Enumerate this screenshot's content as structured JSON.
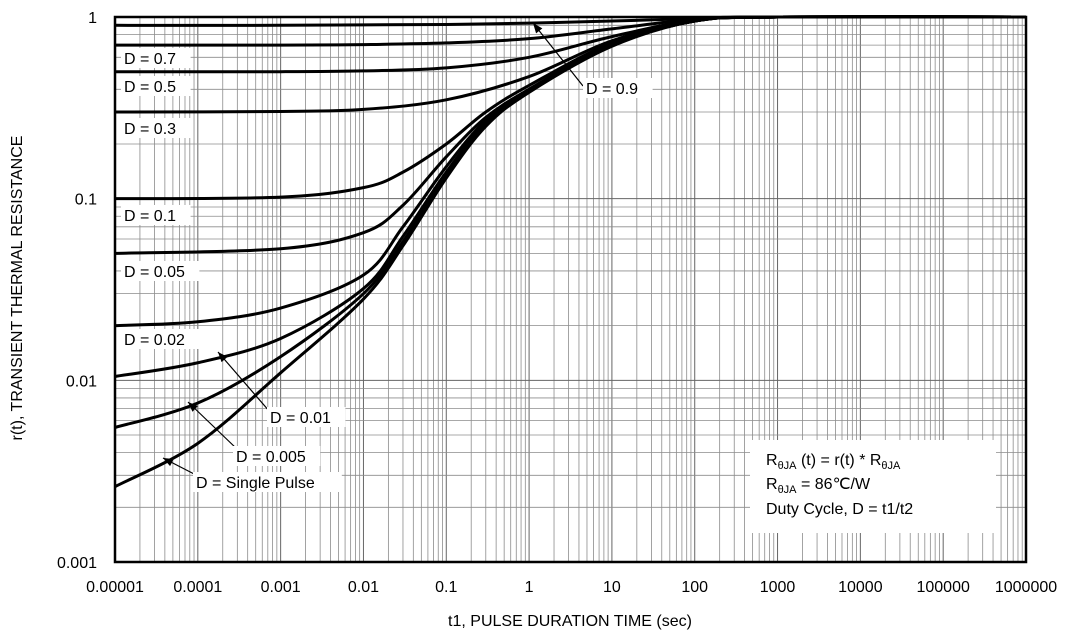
{
  "chart_data": {
    "type": "line",
    "xscale": "log",
    "yscale": "log",
    "grid": true,
    "xlim": [
      1e-05,
      1000000
    ],
    "ylim": [
      0.001,
      1
    ],
    "xlabel": "t1, PULSE DURATION TIME (sec)",
    "ylabel": "r(t), TRANSIENT THERMAL RESISTANCE",
    "x_tick_labels": [
      "0.00001",
      "0.0001",
      "0.001",
      "0.01",
      "0.1",
      "1",
      "10",
      "100",
      "1000",
      "10000",
      "100000",
      "1000000"
    ],
    "y_tick_labels": [
      "0.001",
      "0.01",
      "0.1",
      "1"
    ],
    "x_ticks": [
      1e-05,
      0.0001,
      0.001,
      0.01,
      0.1,
      1,
      10,
      100,
      1000,
      10000,
      100000,
      1000000
    ],
    "y_ticks": [
      0.001,
      0.01,
      0.1,
      1
    ],
    "series": [
      {
        "label": "D = 0.9",
        "x": [
          1e-05,
          0.001,
          0.01,
          0.1,
          1,
          10,
          100,
          1000,
          1000000
        ],
        "y": [
          0.9,
          0.9,
          0.905,
          0.91,
          0.925,
          0.95,
          0.98,
          1.0,
          1.0
        ]
      },
      {
        "label": "D = 0.7",
        "x": [
          1e-05,
          0.001,
          0.01,
          0.1,
          1,
          10,
          100,
          1000,
          1000000
        ],
        "y": [
          0.7,
          0.7,
          0.705,
          0.72,
          0.76,
          0.86,
          0.97,
          1.0,
          1.0
        ]
      },
      {
        "label": "D = 0.5",
        "x": [
          1e-05,
          0.001,
          0.01,
          0.1,
          1,
          10,
          100,
          1000,
          1000000
        ],
        "y": [
          0.5,
          0.5,
          0.505,
          0.525,
          0.6,
          0.78,
          0.96,
          1.0,
          1.0
        ]
      },
      {
        "label": "D = 0.3",
        "x": [
          1e-05,
          0.001,
          0.01,
          0.1,
          1,
          10,
          100,
          1000,
          1000000
        ],
        "y": [
          0.3,
          0.302,
          0.31,
          0.35,
          0.47,
          0.74,
          0.96,
          1.0,
          1.0
        ]
      },
      {
        "label": "D = 0.1",
        "x": [
          1e-05,
          0.001,
          0.01,
          0.03,
          0.1,
          0.3,
          1,
          10,
          100,
          1000,
          1000000
        ],
        "y": [
          0.1,
          0.102,
          0.115,
          0.14,
          0.2,
          0.3,
          0.42,
          0.72,
          0.95,
          1.0,
          1.0
        ]
      },
      {
        "label": "D = 0.05",
        "x": [
          1e-05,
          0.001,
          0.01,
          0.03,
          0.1,
          0.3,
          1,
          10,
          100,
          1000,
          1000000
        ],
        "y": [
          0.05,
          0.053,
          0.065,
          0.092,
          0.17,
          0.28,
          0.4,
          0.71,
          0.95,
          1.0,
          1.0
        ]
      },
      {
        "label": "D = 0.02",
        "x": [
          1e-05,
          0.0001,
          0.001,
          0.01,
          0.03,
          0.1,
          0.3,
          1,
          10,
          100,
          1000,
          1000000
        ],
        "y": [
          0.02,
          0.021,
          0.025,
          0.038,
          0.07,
          0.15,
          0.27,
          0.4,
          0.7,
          0.95,
          1.0,
          1.0
        ]
      },
      {
        "label": "D = 0.01",
        "x": [
          1e-05,
          0.0001,
          0.001,
          0.01,
          0.03,
          0.1,
          0.3,
          1,
          10,
          100,
          1000,
          1000000
        ],
        "y": [
          0.0105,
          0.0125,
          0.017,
          0.032,
          0.062,
          0.14,
          0.26,
          0.39,
          0.7,
          0.95,
          1.0,
          1.0
        ]
      },
      {
        "label": "D = 0.005",
        "x": [
          1e-05,
          0.0001,
          0.001,
          0.01,
          0.03,
          0.1,
          0.3,
          1,
          10,
          100,
          1000,
          1000000
        ],
        "y": [
          0.0055,
          0.0075,
          0.0135,
          0.03,
          0.058,
          0.135,
          0.255,
          0.39,
          0.7,
          0.95,
          1.0,
          1.0
        ]
      },
      {
        "label": "D = Single Pulse",
        "x": [
          1e-05,
          0.0001,
          0.001,
          0.01,
          0.03,
          0.1,
          0.3,
          1,
          10,
          100,
          1000,
          1000000
        ],
        "y": [
          0.0026,
          0.0045,
          0.011,
          0.028,
          0.055,
          0.13,
          0.25,
          0.385,
          0.69,
          0.95,
          1.0,
          1.0
        ]
      }
    ],
    "annotations": [
      {
        "text": "D = 0.7"
      },
      {
        "text": "D = 0.5"
      },
      {
        "text": "D = 0.3"
      },
      {
        "text": "D = 0.1"
      },
      {
        "text": "D = 0.05"
      },
      {
        "text": "D = 0.02"
      },
      {
        "text": "D = 0.9"
      },
      {
        "text": "D = 0.01"
      },
      {
        "text": "D = 0.005"
      },
      {
        "text": "D = Single Pulse"
      }
    ],
    "notes": {
      "line1_main": "R",
      "line1_sub": "θJA",
      "line1_rest": " (t) = r(t) * R",
      "line1_sub2": "θJA",
      "line2_main": "R",
      "line2_sub": "θJA",
      "line2_rest": " = 86℃/W",
      "line3": "Duty Cycle, D = t1/t2"
    }
  }
}
